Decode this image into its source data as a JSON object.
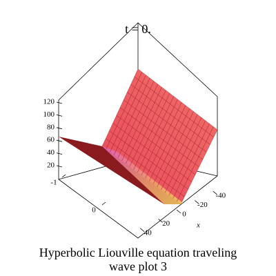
{
  "chart_data": {
    "type": "surface3d",
    "title": "t = 0.",
    "caption": "Hyperbolic Liouville equation  traveling wave plot 3",
    "xlabel": "x",
    "xticks": [
      -40,
      -20,
      0,
      20,
      40
    ],
    "yticks": [
      -1,
      0
    ],
    "zticks": [
      20,
      40,
      60,
      80,
      100,
      120
    ]
  }
}
